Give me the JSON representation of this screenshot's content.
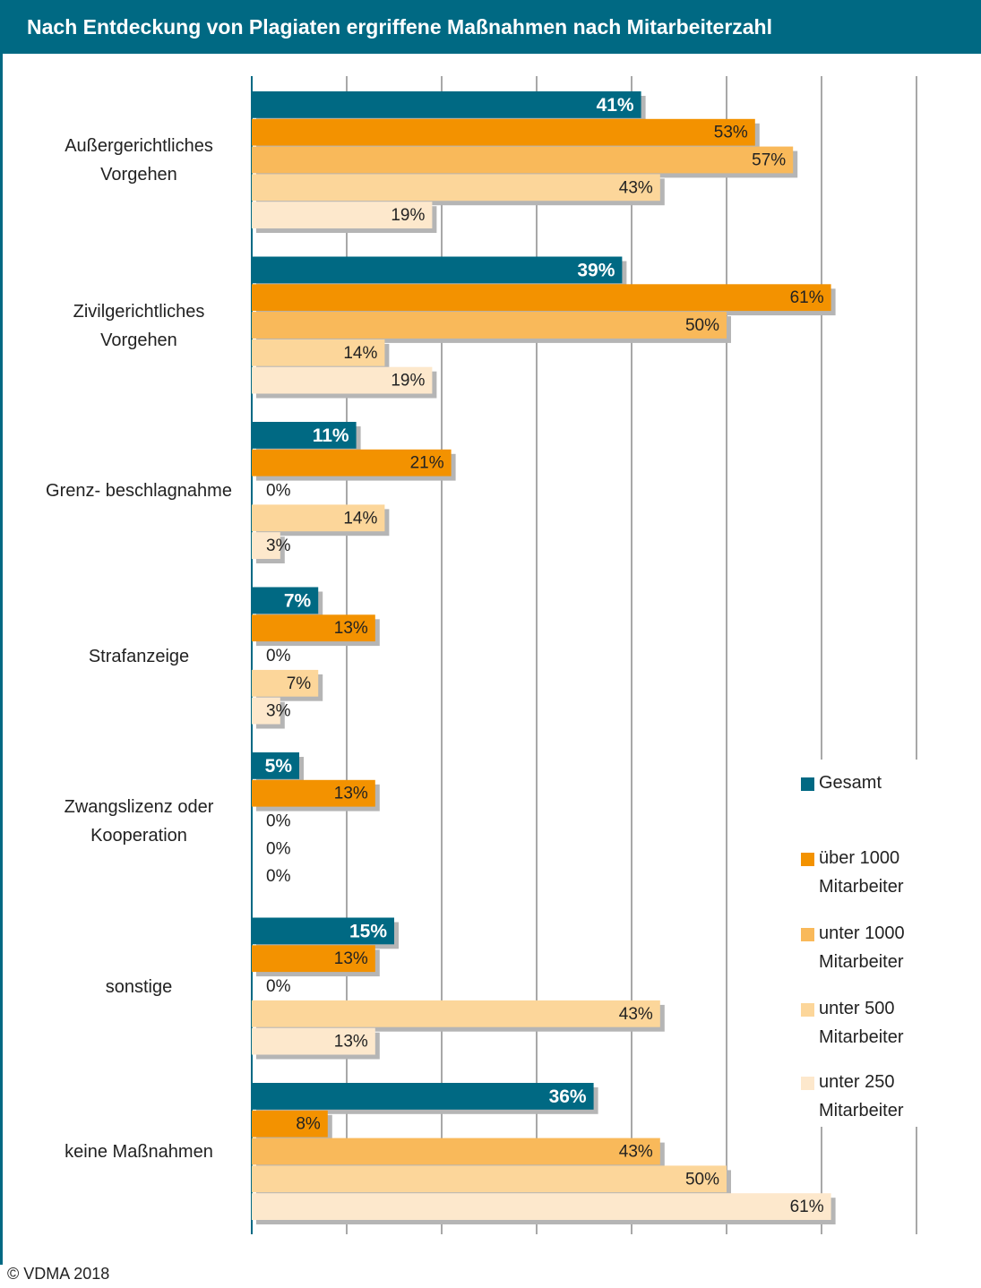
{
  "chart_data": {
    "type": "bar",
    "orientation": "horizontal",
    "title": "Nach Entdeckung von Plagiaten ergriffene Maßnahmen nach Mitarbeiterzahl",
    "categories": [
      "Außergerichtliches Vorgehen",
      "Zivilgerichtliches Vorgehen",
      "Grenz- beschlagnahme",
      "Strafanzeige",
      "Zwangslizenz oder Kooperation",
      "sonstige",
      "keine Maßnahmen"
    ],
    "series": [
      {
        "name": "Gesamt",
        "color": "#006983",
        "values": [
          41,
          39,
          11,
          7,
          5,
          15,
          36
        ],
        "value_labels": [
          "41%",
          "39%",
          "11%",
          "7%",
          "5%",
          "15%",
          "36%"
        ]
      },
      {
        "name": "über 1000 Mitarbeiter",
        "color": "#f39200",
        "values": [
          53,
          61,
          21,
          13,
          13,
          13,
          8
        ],
        "value_labels": [
          "53%",
          "61%",
          "21%",
          "13%",
          "13%",
          "13%",
          "8%"
        ]
      },
      {
        "name": "unter 1000 Mitarbeiter",
        "color": "#f9b95a",
        "values": [
          57,
          50,
          0,
          0,
          0,
          0,
          43
        ],
        "value_labels": [
          "57%",
          "50%",
          "0%",
          "0%",
          "0%",
          "0%",
          "43%"
        ]
      },
      {
        "name": "unter 500 Mitarbeiter",
        "color": "#fcd69a",
        "values": [
          43,
          14,
          14,
          7,
          0,
          43,
          50
        ],
        "value_labels": [
          "43%",
          "14%",
          "14%",
          "7%",
          "0%",
          "43%",
          "50%"
        ]
      },
      {
        "name": "unter 250 Mitarbeiter",
        "color": "#fde8cc",
        "values": [
          19,
          19,
          3,
          3,
          0,
          13,
          61
        ],
        "value_labels": [
          "19%",
          "19%",
          "3%",
          "3%",
          "0%",
          "13%",
          "61%"
        ]
      }
    ],
    "xlim": [
      0,
      70
    ],
    "xticks": [
      0,
      10,
      20,
      30,
      40,
      50,
      60,
      70
    ],
    "grid": true,
    "legend": "right",
    "footer": "© VDMA 2018"
  }
}
